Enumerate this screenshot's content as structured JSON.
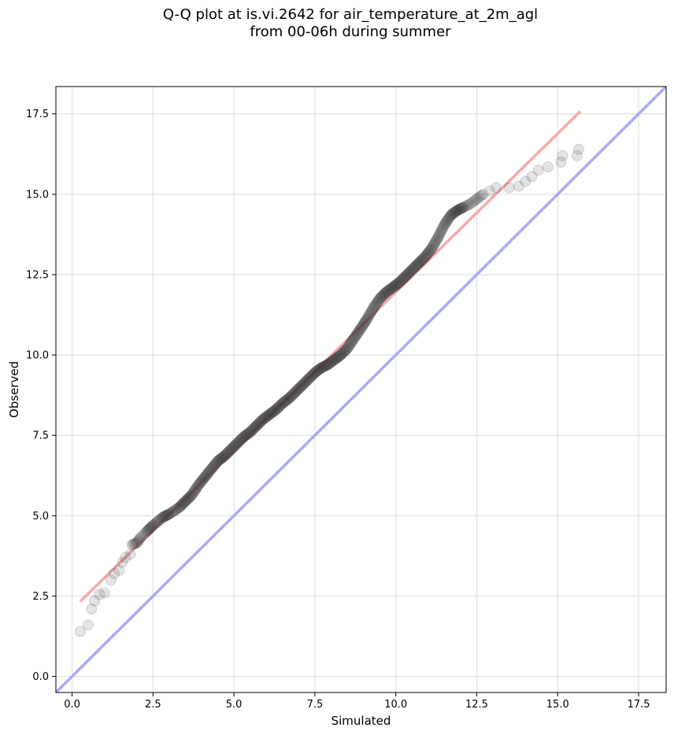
{
  "chart_data": {
    "type": "scatter",
    "title_line1": "Q-Q plot at is.vi.2642 for air_temperature_at_2m_agl",
    "title_line2": "from 00-06h during summer",
    "xlabel": "Simulated",
    "ylabel": "Observed",
    "xlim": [
      -0.5,
      18.35
    ],
    "ylim": [
      -0.5,
      18.35
    ],
    "xticks": [
      0.0,
      2.5,
      5.0,
      7.5,
      10.0,
      12.5,
      15.0,
      17.5
    ],
    "xtick_labels": [
      "0.0",
      "2.5",
      "5.0",
      "7.5",
      "10.0",
      "12.5",
      "15.0",
      "17.5"
    ],
    "yticks": [
      0.0,
      2.5,
      5.0,
      7.5,
      10.0,
      12.5,
      15.0,
      17.5
    ],
    "ytick_labels": [
      "0.0",
      "2.5",
      "5.0",
      "7.5",
      "10.0",
      "12.5",
      "15.0",
      "17.5"
    ],
    "grid": true,
    "reference_line": {
      "x": [
        -0.5,
        18.35
      ],
      "y": [
        -0.5,
        18.35
      ],
      "color": "#aaaaf5"
    },
    "fit_line": {
      "x": [
        0.25,
        15.7
      ],
      "y": [
        2.33,
        17.58
      ],
      "color": "#f5aaaa"
    },
    "quantile_curve": [
      [
        0.25,
        1.4
      ],
      [
        0.5,
        1.6
      ],
      [
        0.6,
        2.1
      ],
      [
        0.7,
        2.35
      ],
      [
        0.85,
        2.55
      ],
      [
        1.0,
        2.6
      ],
      [
        1.2,
        3.0
      ],
      [
        1.3,
        3.2
      ],
      [
        1.45,
        3.3
      ],
      [
        1.55,
        3.55
      ],
      [
        1.65,
        3.7
      ],
      [
        1.8,
        3.8
      ],
      [
        1.85,
        4.1
      ],
      [
        2.0,
        4.15
      ],
      [
        2.1,
        4.3
      ],
      [
        2.3,
        4.5
      ],
      [
        2.5,
        4.7
      ],
      [
        2.8,
        4.95
      ],
      [
        3.0,
        5.05
      ],
      [
        3.3,
        5.25
      ],
      [
        3.5,
        5.45
      ],
      [
        3.7,
        5.65
      ],
      [
        3.9,
        5.95
      ],
      [
        4.1,
        6.2
      ],
      [
        4.3,
        6.45
      ],
      [
        4.5,
        6.7
      ],
      [
        4.7,
        6.85
      ],
      [
        4.9,
        7.05
      ],
      [
        5.1,
        7.25
      ],
      [
        5.3,
        7.45
      ],
      [
        5.5,
        7.6
      ],
      [
        5.7,
        7.8
      ],
      [
        5.9,
        8.0
      ],
      [
        6.1,
        8.15
      ],
      [
        6.3,
        8.3
      ],
      [
        6.5,
        8.5
      ],
      [
        6.7,
        8.65
      ],
      [
        6.9,
        8.85
      ],
      [
        7.1,
        9.05
      ],
      [
        7.3,
        9.25
      ],
      [
        7.5,
        9.45
      ],
      [
        7.7,
        9.6
      ],
      [
        7.9,
        9.7
      ],
      [
        8.1,
        9.85
      ],
      [
        8.3,
        10.0
      ],
      [
        8.5,
        10.2
      ],
      [
        8.7,
        10.5
      ],
      [
        8.9,
        10.8
      ],
      [
        9.1,
        11.1
      ],
      [
        9.3,
        11.45
      ],
      [
        9.5,
        11.75
      ],
      [
        9.7,
        11.95
      ],
      [
        9.9,
        12.1
      ],
      [
        10.1,
        12.25
      ],
      [
        10.3,
        12.45
      ],
      [
        10.5,
        12.65
      ],
      [
        10.7,
        12.85
      ],
      [
        10.9,
        13.05
      ],
      [
        11.1,
        13.3
      ],
      [
        11.3,
        13.65
      ],
      [
        11.5,
        14.05
      ],
      [
        11.7,
        14.35
      ],
      [
        11.9,
        14.5
      ],
      [
        12.1,
        14.6
      ],
      [
        12.3,
        14.7
      ],
      [
        12.5,
        14.85
      ],
      [
        12.7,
        15.0
      ],
      [
        12.9,
        15.1
      ],
      [
        13.1,
        15.2
      ],
      [
        13.5,
        15.2
      ],
      [
        13.8,
        15.25
      ],
      [
        14.0,
        15.4
      ],
      [
        14.2,
        15.55
      ],
      [
        14.4,
        15.75
      ],
      [
        14.7,
        15.85
      ],
      [
        15.1,
        16.0
      ],
      [
        15.15,
        16.2
      ],
      [
        15.6,
        16.2
      ],
      [
        15.65,
        16.4
      ]
    ]
  }
}
